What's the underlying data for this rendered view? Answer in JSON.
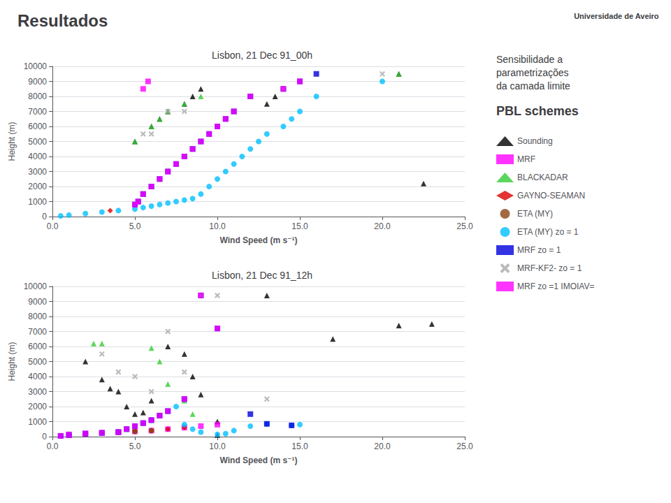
{
  "title": "Resultados",
  "subtitle": "Sensibilidade a\nparametrizações\nda camada limite",
  "annotations": [
    "PBL schemes",
    "Universidade de Aveiro"
  ],
  "legend": "right",
  "chart_data": [
    {
      "type": "scatter",
      "title": "Lisbon, 21 Dec 91_00h",
      "xlabel": "Wind Speed (m s⁻¹)",
      "ylabel": "Height (m)",
      "xlim": [
        0.0,
        25.0
      ],
      "ylim": [
        0,
        10000
      ],
      "xticks": [
        {
          "value": 0,
          "label": "0.0"
        },
        {
          "value": 5,
          "label": "5.0"
        },
        {
          "value": 10,
          "label": "10.0"
        },
        {
          "value": 15,
          "label": "15.0"
        },
        {
          "value": 20,
          "label": "20.0"
        },
        {
          "value": 25,
          "label": "25.0"
        }
      ],
      "yticks": [
        0,
        1000,
        2000,
        3000,
        4000,
        5000,
        6000,
        7000,
        8000,
        9000,
        10000
      ],
      "grid": "y",
      "series": [
        {
          "name": "Sounding",
          "color": "#000000",
          "marker": "triangle",
          "x": [
            5,
            6,
            6.5,
            7,
            8,
            8.5,
            9,
            13,
            13.5,
            22.5,
            21
          ],
          "values": [
            5000,
            6000,
            6500,
            7000,
            7500,
            8000,
            8500,
            7500,
            8000,
            2200,
            9500
          ]
        },
        {
          "name": "MRF",
          "color": "#ff00ff",
          "marker": "square",
          "x": [
            5.5,
            5.8
          ],
          "values": [
            8500,
            9000
          ]
        },
        {
          "name": "BLACKADAR",
          "color": "#33cc33",
          "marker": "triangle",
          "x": [
            5,
            6,
            6.5,
            7,
            8,
            9,
            21
          ],
          "values": [
            5000,
            6000,
            6500,
            7000,
            7500,
            8000,
            9500
          ]
        },
        {
          "name": "GAYNO-SEAMAN",
          "color": "#dd0000",
          "marker": "diamond",
          "x": [
            3.5
          ],
          "values": [
            400
          ]
        },
        {
          "name": "ETA (MY)",
          "color": "#8B4513",
          "marker": "circle",
          "x": [],
          "values": []
        },
        {
          "name": "ETA (MY) zo = 1",
          "color": "#00bfff",
          "marker": "circle",
          "x": [
            0.5,
            1,
            2,
            3,
            4,
            5,
            5.5,
            6,
            6.5,
            7,
            7.5,
            8,
            8.5,
            9,
            9.5,
            10,
            10.5,
            11,
            11.5,
            12,
            12.5,
            13,
            14,
            14.5,
            15,
            16,
            20
          ],
          "values": [
            50,
            100,
            200,
            300,
            400,
            500,
            600,
            700,
            800,
            900,
            1000,
            1100,
            1200,
            1500,
            2000,
            2500,
            3000,
            3500,
            4000,
            4500,
            5000,
            5500,
            6000,
            6500,
            7000,
            8000,
            9000
          ]
        },
        {
          "name": "MRF zo = 1",
          "color": "#0000dd",
          "marker": "square",
          "x": [
            5,
            5.2,
            5.5,
            6,
            6.5,
            7,
            7.5,
            8,
            8.5,
            9,
            9.5,
            10,
            10.5,
            11,
            12,
            14,
            15,
            16
          ],
          "values": [
            800,
            1000,
            1500,
            2000,
            2500,
            3000,
            3500,
            4000,
            4500,
            5000,
            5500,
            6000,
            6500,
            7000,
            8000,
            8500,
            9000,
            9500
          ]
        },
        {
          "name": "MRF-KF2- zo = 1",
          "color": "#aaaaaa",
          "marker": "x",
          "x": [
            5.5,
            6,
            7,
            8,
            14,
            20
          ],
          "values": [
            5500,
            5500,
            7000,
            7000,
            8500,
            9500
          ]
        },
        {
          "name": "MRF zo =1 IMOIAV=",
          "color": "#ff00ff",
          "marker": "square",
          "x": [
            5,
            5.2,
            5.5,
            6,
            6.5,
            7,
            7.5,
            8,
            8.5,
            9,
            9.5,
            10,
            10.5,
            11,
            12,
            14,
            15
          ],
          "values": [
            800,
            1000,
            1500,
            2000,
            2500,
            3000,
            3500,
            4000,
            4500,
            5000,
            5500,
            6000,
            6500,
            7000,
            8000,
            8500,
            9000
          ]
        }
      ]
    },
    {
      "type": "scatter",
      "title": "Lisbon, 21 Dec 91_12h",
      "xlabel": "Wind Speed (m s⁻¹)",
      "ylabel": "Height (m)",
      "xlim": [
        0.0,
        25.0
      ],
      "ylim": [
        0,
        10000
      ],
      "xticks": [
        {
          "value": 0,
          "label": "0.0"
        },
        {
          "value": 5,
          "label": "5.0"
        },
        {
          "value": 10,
          "label": "10.0"
        },
        {
          "value": 15,
          "label": "15.0"
        },
        {
          "value": 20,
          "label": "20.0"
        },
        {
          "value": 25,
          "label": "25.0"
        }
      ],
      "yticks": [
        0,
        1000,
        2000,
        3000,
        4000,
        5000,
        6000,
        7000,
        8000,
        9000,
        10000
      ],
      "grid": "y",
      "series": [
        {
          "name": "Sounding",
          "color": "#000000",
          "marker": "triangle",
          "x": [
            2,
            3,
            3.5,
            4,
            4.5,
            5,
            5.5,
            6,
            7,
            8,
            8.5,
            9,
            10,
            10,
            13,
            17,
            21,
            23
          ],
          "values": [
            5000,
            3800,
            3200,
            3000,
            2000,
            1500,
            1600,
            2400,
            6000,
            5500,
            4000,
            2800,
            1000,
            100,
            9400,
            6500,
            7400,
            7500
          ]
        },
        {
          "name": "MRF",
          "color": "#ff00ff",
          "marker": "square",
          "x": [
            1,
            2,
            3,
            4,
            5,
            6,
            7,
            8,
            9,
            10
          ],
          "values": [
            150,
            200,
            250,
            300,
            350,
            400,
            500,
            600,
            700,
            800
          ]
        },
        {
          "name": "BLACKADAR",
          "color": "#33cc33",
          "marker": "triangle",
          "x": [
            2.5,
            3,
            6,
            6.5,
            7,
            8,
            8.5
          ],
          "values": [
            6200,
            6200,
            5900,
            5000,
            3500,
            2400,
            1500
          ]
        },
        {
          "name": "GAYNO-SEAMAN",
          "color": "#dd0000",
          "marker": "diamond",
          "x": [
            1,
            2,
            3,
            4,
            5,
            6,
            7,
            8
          ],
          "values": [
            100,
            200,
            250,
            300,
            350,
            400,
            500,
            600
          ]
        },
        {
          "name": "ETA (MY)",
          "color": "#8B4513",
          "marker": "circle",
          "x": [
            1,
            2,
            3,
            4,
            5,
            6
          ],
          "values": [
            100,
            200,
            250,
            300,
            350,
            400
          ]
        },
        {
          "name": "ETA (MY) zo = 1",
          "color": "#00bfff",
          "marker": "circle",
          "x": [
            0.5,
            1,
            2,
            3,
            4,
            4.5,
            5,
            5.5,
            6,
            6.5,
            7,
            7.5,
            8,
            8.5,
            9,
            10,
            10.5,
            11,
            12,
            13,
            14.5,
            15
          ],
          "values": [
            50,
            100,
            200,
            250,
            300,
            500,
            700,
            900,
            1100,
            1400,
            1700,
            2000,
            800,
            500,
            300,
            150,
            200,
            400,
            700,
            850,
            750,
            800
          ]
        },
        {
          "name": "MRF zo = 1",
          "color": "#0000dd",
          "marker": "square",
          "x": [
            0.5,
            1,
            2,
            3,
            4,
            4.5,
            5,
            5.5,
            6,
            6.5,
            7,
            8,
            9,
            10,
            12,
            13,
            14.5
          ],
          "values": [
            50,
            100,
            200,
            250,
            300,
            500,
            700,
            900,
            1100,
            1400,
            1700,
            2500,
            9400,
            7200,
            1500,
            850,
            750
          ]
        },
        {
          "name": "MRF-KF2- zo = 1",
          "color": "#aaaaaa",
          "marker": "x",
          "x": [
            3,
            4,
            5,
            6,
            7,
            8,
            9,
            10,
            13
          ],
          "values": [
            5500,
            4300,
            4000,
            3000,
            7000,
            4300,
            9400,
            9400,
            2500
          ]
        },
        {
          "name": "MRF zo =1 IMOIAV=",
          "color": "#ff00ff",
          "marker": "square",
          "x": [
            0.5,
            1,
            2,
            3,
            4,
            4.5,
            5,
            5.5,
            6,
            6.5,
            7,
            8,
            9,
            10
          ],
          "values": [
            50,
            100,
            200,
            250,
            300,
            500,
            700,
            900,
            1100,
            1400,
            1700,
            2500,
            9400,
            7200
          ]
        }
      ]
    }
  ]
}
